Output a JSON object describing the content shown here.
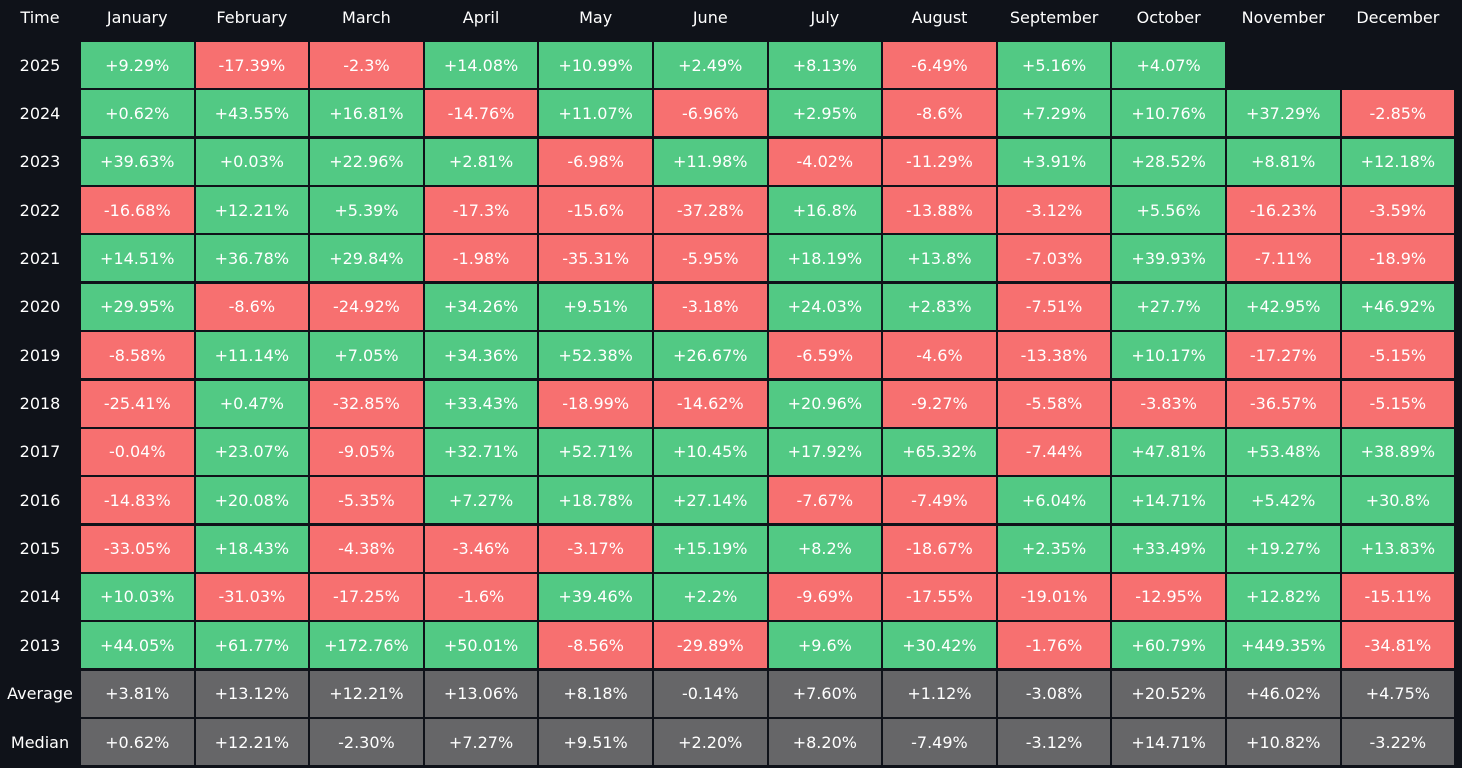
{
  "header": [
    "Time",
    "January",
    "February",
    "March",
    "April",
    "May",
    "June",
    "July",
    "August",
    "September",
    "October",
    "November",
    "December"
  ],
  "rows": [
    [
      "2025",
      "+9.29%",
      "-17.39%",
      "-2.3%",
      "+14.08%",
      "+10.99%",
      "+2.49%",
      "+8.13%",
      "-6.49%",
      "+5.16%",
      "+4.07%"
    ],
    [
      "2024",
      "+0.62%",
      "+43.55%",
      "+16.81%",
      "-14.76%",
      "+11.07%",
      "-6.96%",
      "+2.95%",
      "-8.6%",
      "+7.29%",
      "+10.76%",
      "+37.29%",
      "-2.85%"
    ],
    [
      "2023",
      "+39.63%",
      "+0.03%",
      "+22.96%",
      "+2.81%",
      "-6.98%",
      "+11.98%",
      "-4.02%",
      "-11.29%",
      "+3.91%",
      "+28.52%",
      "+8.81%",
      "+12.18%"
    ],
    [
      "2022",
      "-16.68%",
      "+12.21%",
      "+5.39%",
      "-17.3%",
      "-15.6%",
      "-37.28%",
      "+16.8%",
      "-13.88%",
      "-3.12%",
      "+5.56%",
      "-16.23%",
      "-3.59%"
    ],
    [
      "2021",
      "+14.51%",
      "+36.78%",
      "+29.84%",
      "-1.98%",
      "-35.31%",
      "-5.95%",
      "+18.19%",
      "+13.8%",
      "-7.03%",
      "+39.93%",
      "-7.11%",
      "-18.9%"
    ],
    [
      "2020",
      "+29.95%",
      "-8.6%",
      "-24.92%",
      "+34.26%",
      "+9.51%",
      "-3.18%",
      "+24.03%",
      "+2.83%",
      "-7.51%",
      "+27.7%",
      "+42.95%",
      "+46.92%"
    ],
    [
      "2019",
      "-8.58%",
      "+11.14%",
      "+7.05%",
      "+34.36%",
      "+52.38%",
      "+26.67%",
      "-6.59%",
      "-4.6%",
      "-13.38%",
      "+10.17%",
      "-17.27%",
      "-5.15%"
    ],
    [
      "2018",
      "-25.41%",
      "+0.47%",
      "-32.85%",
      "+33.43%",
      "-18.99%",
      "-14.62%",
      "+20.96%",
      "-9.27%",
      "-5.58%",
      "-3.83%",
      "-36.57%",
      "-5.15%"
    ],
    [
      "2017",
      "-0.04%",
      "+23.07%",
      "-9.05%",
      "+32.71%",
      "+52.71%",
      "+10.45%",
      "+17.92%",
      "+65.32%",
      "-7.44%",
      "+47.81%",
      "+53.48%",
      "+38.89%"
    ],
    [
      "2016",
      "-14.83%",
      "+20.08%",
      "-5.35%",
      "+7.27%",
      "+18.78%",
      "+27.14%",
      "-7.67%",
      "-7.49%",
      "+6.04%",
      "+14.71%",
      "+5.42%",
      "+30.8%"
    ],
    [
      "2015",
      "-33.05%",
      "+18.43%",
      "-4.38%",
      "-3.46%",
      "-3.17%",
      "+15.19%",
      "+8.2%",
      "-18.67%",
      "+2.35%",
      "+33.49%",
      "+19.27%",
      "+13.83%"
    ],
    [
      "2014",
      "+10.03%",
      "-31.03%",
      "-17.25%",
      "-1.6%",
      "+39.46%",
      "+2.2%",
      "-9.69%",
      "-17.55%",
      "-19.01%",
      "-12.95%",
      "+12.82%",
      "-15.11%"
    ],
    [
      "2013",
      "+44.05%",
      "+61.77%",
      "+172.76%",
      "+50.01%",
      "-8.56%",
      "-29.89%",
      "+9.6%",
      "+30.42%",
      "-1.76%",
      "+60.79%",
      "+449.35%",
      "-34.81%"
    ]
  ],
  "summary_rows": [
    [
      "Average",
      "+3.81%",
      "+13.12%",
      "+12.21%",
      "+13.06%",
      "+8.18%",
      "-0.14%",
      "+7.60%",
      "+1.12%",
      "-3.08%",
      "+20.52%",
      "+46.02%",
      "+4.75%"
    ],
    [
      "Median",
      "+0.62%",
      "+12.21%",
      "-2.30%",
      "+7.27%",
      "+9.51%",
      "+2.20%",
      "+8.20%",
      "-7.49%",
      "-3.12%",
      "+14.71%",
      "+10.82%",
      "-3.22%"
    ]
  ]
}
